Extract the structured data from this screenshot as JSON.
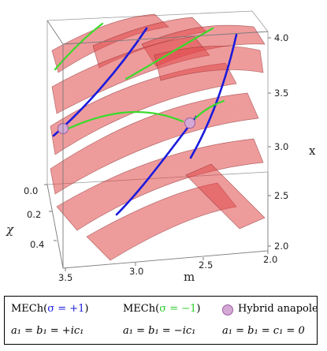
{
  "chart_data": {
    "type": "3d-surface",
    "axes": {
      "m": {
        "label": "m",
        "ticks": [
          "3.5",
          "3.0",
          "2.5",
          "2.0"
        ],
        "range": [
          2.0,
          3.5
        ]
      },
      "chi": {
        "label": "χ",
        "ticks": [
          "0.0",
          "0.2",
          "0.4"
        ],
        "range": [
          0.0,
          0.5
        ]
      },
      "x": {
        "label": "x",
        "ticks": [
          "2.0",
          "2.5",
          "3.0",
          "3.5",
          "4.0"
        ],
        "range": [
          2.0,
          4.0
        ]
      }
    },
    "surface_color": "#e0484b",
    "legend": [
      {
        "text": "MECh(",
        "sigma": "σ = +1",
        "close": ")",
        "color": "#1a1adc",
        "subtext": "a₁ = b₁ = +ic₁"
      },
      {
        "text": "MECh(",
        "sigma": "σ = −1",
        "close": ")",
        "color": "#2ecc2e",
        "subtext": "a₁ = b₁ = −ic₁",
        "subtext_color": "#2ecc2e"
      },
      {
        "text": "Hybrid anapole",
        "marker_color": "#d4a9d6",
        "subtext": "a₁ = b₁ = c₁ = 0"
      }
    ]
  }
}
